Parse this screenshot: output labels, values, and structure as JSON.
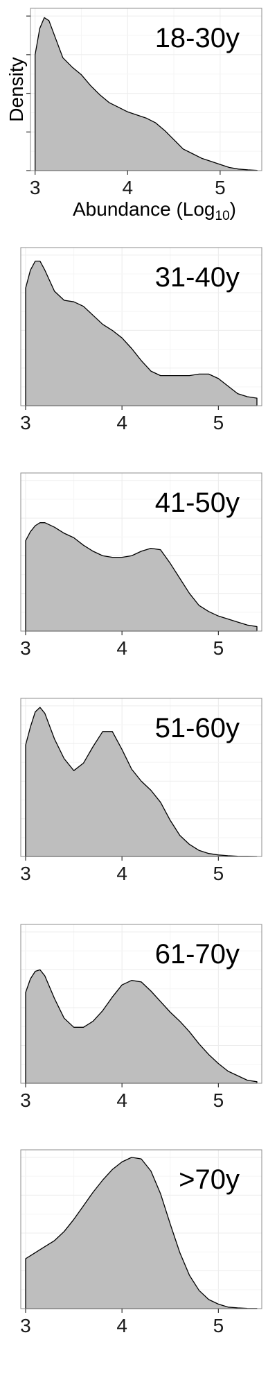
{
  "chart_data": [
    {
      "type": "area",
      "title": "18-30y",
      "xlabel": "Abundance (Log",
      "xlabel_sub": "10",
      "xlabel_end": ")",
      "ylabel": "Density",
      "xlim": [
        2.95,
        5.45
      ],
      "ylim": [
        0,
        1.05
      ],
      "xticks": [
        3,
        4,
        5
      ],
      "xtick_labels": [
        "3",
        "4",
        "5"
      ],
      "grid": true,
      "fill_color": "#bebebe",
      "x": [
        3.0,
        3.05,
        3.1,
        3.15,
        3.2,
        3.3,
        3.4,
        3.5,
        3.6,
        3.7,
        3.8,
        3.9,
        4.0,
        4.1,
        4.2,
        4.3,
        4.4,
        4.5,
        4.6,
        4.7,
        4.8,
        4.9,
        5.0,
        5.1,
        5.2,
        5.3,
        5.4
      ],
      "y": [
        0.75,
        0.92,
        0.99,
        0.97,
        0.89,
        0.73,
        0.67,
        0.62,
        0.55,
        0.49,
        0.44,
        0.41,
        0.38,
        0.36,
        0.34,
        0.31,
        0.26,
        0.2,
        0.14,
        0.11,
        0.08,
        0.06,
        0.04,
        0.02,
        0.01,
        0.005,
        0.002
      ]
    },
    {
      "type": "area",
      "title": "31-40y",
      "xlim": [
        2.95,
        5.45
      ],
      "ylim": [
        0,
        1.05
      ],
      "xticks": [
        3,
        4,
        5
      ],
      "xtick_labels": [
        "3",
        "4",
        "5"
      ],
      "grid": true,
      "fill_color": "#bebebe",
      "x": [
        3.0,
        3.05,
        3.1,
        3.15,
        3.2,
        3.3,
        3.4,
        3.5,
        3.6,
        3.7,
        3.8,
        3.9,
        4.0,
        4.1,
        4.2,
        4.3,
        4.4,
        4.5,
        4.6,
        4.7,
        4.8,
        4.9,
        5.0,
        5.1,
        5.2,
        5.3,
        5.4
      ],
      "y": [
        0.78,
        0.9,
        0.96,
        0.96,
        0.9,
        0.76,
        0.7,
        0.69,
        0.66,
        0.6,
        0.54,
        0.5,
        0.45,
        0.38,
        0.3,
        0.23,
        0.2,
        0.2,
        0.2,
        0.2,
        0.21,
        0.21,
        0.18,
        0.13,
        0.08,
        0.06,
        0.05
      ]
    },
    {
      "type": "area",
      "title": "41-50y",
      "xlim": [
        2.95,
        5.45
      ],
      "ylim": [
        0,
        1.05
      ],
      "xticks": [
        3,
        4,
        5
      ],
      "xtick_labels": [
        "3",
        "4",
        "5"
      ],
      "grid": true,
      "fill_color": "#bebebe",
      "x": [
        3.0,
        3.05,
        3.1,
        3.15,
        3.2,
        3.3,
        3.4,
        3.5,
        3.6,
        3.7,
        3.8,
        3.9,
        4.0,
        4.1,
        4.2,
        4.3,
        4.4,
        4.5,
        4.6,
        4.7,
        4.8,
        4.9,
        5.0,
        5.1,
        5.2,
        5.3,
        5.4
      ],
      "y": [
        0.6,
        0.66,
        0.7,
        0.72,
        0.72,
        0.69,
        0.65,
        0.62,
        0.57,
        0.53,
        0.5,
        0.49,
        0.49,
        0.5,
        0.53,
        0.55,
        0.54,
        0.45,
        0.35,
        0.25,
        0.17,
        0.13,
        0.1,
        0.08,
        0.06,
        0.04,
        0.03
      ]
    },
    {
      "type": "area",
      "title": "51-60y",
      "xlim": [
        2.95,
        5.45
      ],
      "ylim": [
        0,
        1.05
      ],
      "xticks": [
        3,
        4,
        5
      ],
      "xtick_labels": [
        "3",
        "4",
        "5"
      ],
      "grid": true,
      "fill_color": "#bebebe",
      "x": [
        3.0,
        3.05,
        3.1,
        3.15,
        3.2,
        3.3,
        3.4,
        3.5,
        3.6,
        3.7,
        3.8,
        3.9,
        4.0,
        4.1,
        4.2,
        4.3,
        4.4,
        4.5,
        4.6,
        4.7,
        4.8,
        4.9,
        5.0,
        5.1,
        5.2,
        5.3,
        5.4
      ],
      "y": [
        0.74,
        0.86,
        0.96,
        0.99,
        0.95,
        0.78,
        0.65,
        0.57,
        0.62,
        0.73,
        0.83,
        0.83,
        0.71,
        0.58,
        0.5,
        0.44,
        0.36,
        0.24,
        0.14,
        0.08,
        0.04,
        0.02,
        0.01,
        0.005,
        0.002,
        0.001,
        0.0
      ]
    },
    {
      "type": "area",
      "title": "61-70y",
      "xlim": [
        2.95,
        5.45
      ],
      "ylim": [
        0,
        1.05
      ],
      "xticks": [
        3,
        4,
        5
      ],
      "xtick_labels": [
        "3",
        "4",
        "5"
      ],
      "grid": true,
      "fill_color": "#bebebe",
      "x": [
        3.0,
        3.05,
        3.1,
        3.15,
        3.2,
        3.3,
        3.4,
        3.5,
        3.6,
        3.7,
        3.8,
        3.9,
        4.0,
        4.1,
        4.2,
        4.3,
        4.4,
        4.5,
        4.6,
        4.7,
        4.8,
        4.9,
        5.0,
        5.1,
        5.2,
        5.3,
        5.4
      ],
      "y": [
        0.6,
        0.69,
        0.74,
        0.75,
        0.71,
        0.56,
        0.43,
        0.37,
        0.37,
        0.41,
        0.48,
        0.57,
        0.65,
        0.68,
        0.67,
        0.61,
        0.54,
        0.47,
        0.41,
        0.34,
        0.26,
        0.19,
        0.13,
        0.08,
        0.05,
        0.02,
        0.01
      ]
    },
    {
      "type": "area",
      "title": ">70y",
      "xlim": [
        2.95,
        5.45
      ],
      "ylim": [
        0,
        1.05
      ],
      "xticks": [
        3,
        4,
        5
      ],
      "xtick_labels": [
        "3",
        "4",
        "5"
      ],
      "grid": true,
      "fill_color": "#bebebe",
      "x": [
        3.0,
        3.05,
        3.1,
        3.15,
        3.2,
        3.3,
        3.4,
        3.5,
        3.6,
        3.7,
        3.8,
        3.9,
        4.0,
        4.1,
        4.2,
        4.3,
        4.4,
        4.5,
        4.6,
        4.7,
        4.8,
        4.9,
        5.0,
        5.1,
        5.2,
        5.3,
        5.4
      ],
      "y": [
        0.33,
        0.35,
        0.37,
        0.39,
        0.41,
        0.45,
        0.51,
        0.59,
        0.68,
        0.77,
        0.85,
        0.92,
        0.97,
        1.0,
        0.99,
        0.91,
        0.76,
        0.56,
        0.37,
        0.22,
        0.12,
        0.06,
        0.03,
        0.01,
        0.005,
        0.002,
        0.001
      ]
    }
  ]
}
